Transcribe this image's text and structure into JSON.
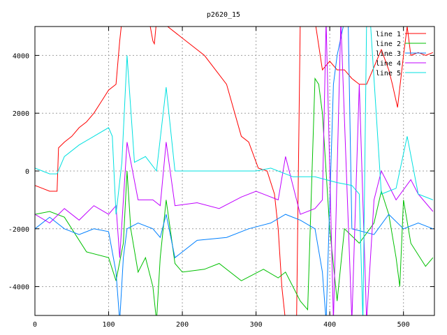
{
  "chart_data": {
    "type": "line",
    "title": "p2620_15",
    "xlabel": "",
    "ylabel": "",
    "xlim": [
      0,
      542
    ],
    "ylim": [
      -5000,
      5000
    ],
    "xticks": [
      0,
      100,
      200,
      300,
      400,
      500
    ],
    "yticks": [
      -4000,
      -2000,
      0,
      2000,
      4000
    ],
    "grid": true,
    "legend_position": "top-right",
    "series": [
      {
        "name": "line 1",
        "color": "#ff0000",
        "x": [
          0,
          10,
          20,
          30,
          32,
          40,
          50,
          60,
          70,
          80,
          90,
          100,
          110,
          115,
          118,
          125,
          155,
          160,
          162,
          165,
          170,
          200,
          230,
          260,
          280,
          290,
          303,
          315,
          325,
          330,
          335,
          340,
          355,
          360,
          380,
          390,
          400,
          410,
          420,
          430,
          440,
          450,
          460,
          470,
          480,
          485,
          492,
          500,
          505,
          510,
          520,
          530,
          540
        ],
        "y": [
          -500,
          -600,
          -700,
          -700,
          800,
          1000,
          1200,
          1500,
          1700,
          2000,
          2400,
          2800,
          3000,
          4500,
          5200,
          5200,
          5200,
          4500,
          4400,
          5200,
          5200,
          4600,
          4000,
          3000,
          1200,
          1000,
          100,
          0,
          -800,
          -2000,
          -4000,
          -5200,
          -5200,
          5200,
          5200,
          3500,
          3800,
          3500,
          3500,
          3200,
          3000,
          3000,
          3600,
          4200,
          3500,
          3000,
          2200,
          4000,
          5000,
          4000,
          4100,
          4000,
          4100
        ]
      },
      {
        "name": "line 2",
        "color": "#00c000",
        "x": [
          0,
          20,
          40,
          50,
          70,
          100,
          110,
          120,
          125,
          130,
          140,
          150,
          160,
          165,
          170,
          178,
          190,
          200,
          230,
          250,
          280,
          310,
          330,
          340,
          360,
          370,
          380,
          385,
          390,
          400,
          410,
          420,
          440,
          460,
          470,
          480,
          490,
          495,
          500,
          510,
          530,
          540
        ],
        "y": [
          -1500,
          -1400,
          -1600,
          -2000,
          -2800,
          -3000,
          -3800,
          -2500,
          0,
          -2000,
          -3500,
          -3000,
          -4000,
          -5200,
          -3000,
          -1000,
          -3200,
          -3500,
          -3400,
          -3200,
          -3800,
          -3400,
          -3700,
          -3500,
          -4500,
          -4800,
          3200,
          3000,
          2000,
          -2000,
          -4500,
          -2000,
          -2500,
          -1800,
          -700,
          -1500,
          -3000,
          -4000,
          -1000,
          -2500,
          -3300,
          -3000
        ]
      },
      {
        "name": "line 3",
        "color": "#0080ff",
        "x": [
          0,
          20,
          40,
          60,
          80,
          100,
          110,
          115,
          120,
          125,
          140,
          160,
          170,
          178,
          190,
          220,
          260,
          290,
          320,
          340,
          360,
          380,
          390,
          395,
          405,
          410,
          420,
          425,
          430,
          460,
          480,
          500,
          520,
          540
        ],
        "y": [
          -2000,
          -1600,
          -2000,
          -2200,
          -2000,
          -2100,
          -3500,
          -5200,
          -3000,
          -2000,
          -1800,
          -2000,
          -2300,
          -1500,
          -3000,
          -2400,
          -2300,
          -2000,
          -1800,
          -1500,
          -1700,
          -2000,
          -3500,
          -5200,
          3000,
          4000,
          5200,
          5200,
          -2000,
          -2200,
          -1500,
          -2000,
          -1800,
          -2000
        ]
      },
      {
        "name": "line 4",
        "color": "#c000ff",
        "x": [
          0,
          20,
          40,
          60,
          80,
          100,
          110,
          115,
          125,
          140,
          160,
          170,
          178,
          190,
          220,
          250,
          280,
          300,
          330,
          340,
          360,
          380,
          390,
          395,
          405,
          415,
          430,
          440,
          450,
          460,
          470,
          490,
          510,
          520,
          540
        ],
        "y": [
          -1500,
          -1800,
          -1300,
          -1700,
          -1200,
          -1500,
          -1200,
          -3000,
          1000,
          -1000,
          -1000,
          -1200,
          1000,
          -1200,
          -1100,
          -1300,
          -900,
          -700,
          -1000,
          500,
          -1500,
          -1300,
          -1000,
          5200,
          -5200,
          5200,
          -5200,
          3000,
          -5200,
          -1000,
          0,
          -1000,
          -300,
          -800,
          -1400
        ]
      },
      {
        "name": "line 5",
        "color": "#00e0e0",
        "x": [
          0,
          10,
          20,
          30,
          40,
          60,
          80,
          100,
          105,
          110,
          118,
          125,
          135,
          150,
          165,
          178,
          190,
          230,
          260,
          300,
          320,
          350,
          380,
          410,
          430,
          440,
          445,
          450,
          455,
          470,
          490,
          505,
          520,
          540
        ],
        "y": [
          100,
          0,
          -100,
          -100,
          500,
          900,
          1200,
          1500,
          1200,
          -1500,
          300,
          4000,
          300,
          500,
          0,
          2900,
          0,
          0,
          0,
          0,
          100,
          -200,
          -200,
          -400,
          -500,
          -800,
          -5200,
          5200,
          5200,
          -800,
          -600,
          1200,
          -800,
          -1000
        ]
      }
    ]
  }
}
